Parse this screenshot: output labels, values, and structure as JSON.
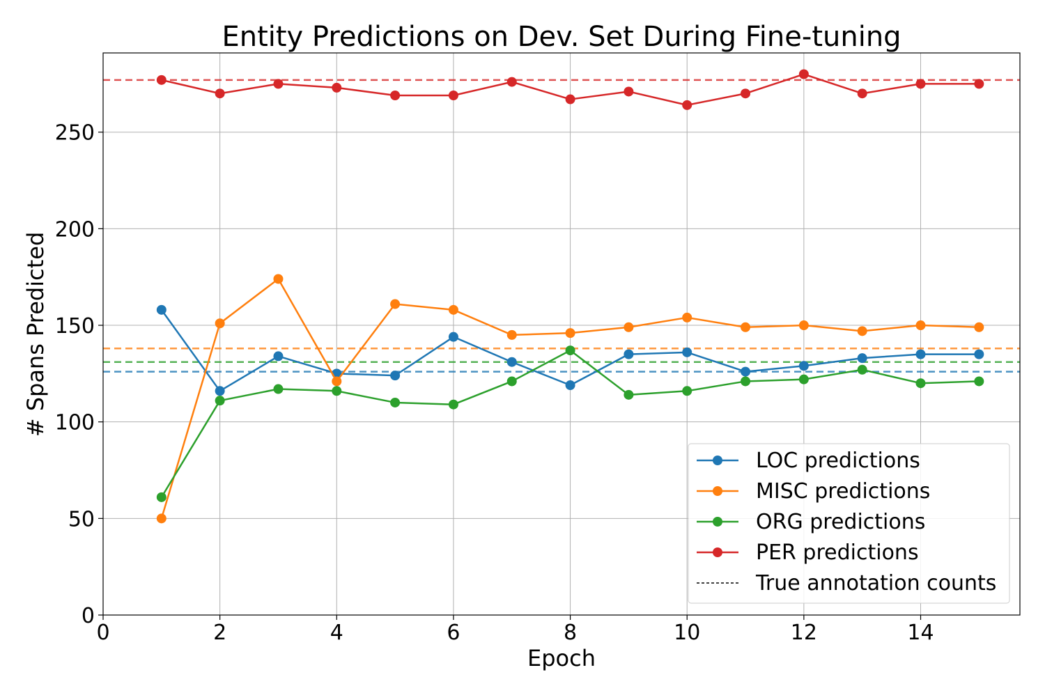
{
  "chart_data": {
    "type": "line",
    "title": "Entity Predictions on Dev. Set During Fine-tuning",
    "xlabel": "Epoch",
    "ylabel": "# Spans Predicted",
    "xlim": [
      0,
      15.7
    ],
    "ylim": [
      0,
      291
    ],
    "xticks": [
      0,
      2,
      4,
      6,
      8,
      10,
      12,
      14
    ],
    "yticks": [
      0,
      50,
      100,
      150,
      200,
      250
    ],
    "grid": true,
    "legend_position": "lower-right",
    "x": [
      1,
      2,
      3,
      4,
      5,
      6,
      7,
      8,
      9,
      10,
      11,
      12,
      13,
      14,
      15
    ],
    "series": [
      {
        "name": "LOC predictions",
        "color": "#1f77b4",
        "true_count": 126,
        "values": [
          158,
          116,
          134,
          125,
          124,
          144,
          131,
          119,
          135,
          136,
          126,
          129,
          133,
          135,
          135
        ]
      },
      {
        "name": "MISC predictions",
        "color": "#ff7f0e",
        "true_count": 138,
        "values": [
          50,
          151,
          174,
          121,
          161,
          158,
          145,
          146,
          149,
          154,
          149,
          150,
          147,
          150,
          149
        ]
      },
      {
        "name": "ORG predictions",
        "color": "#2ca02c",
        "true_count": 131,
        "values": [
          61,
          111,
          117,
          116,
          110,
          109,
          121,
          137,
          114,
          116,
          121,
          122,
          127,
          120,
          121
        ]
      },
      {
        "name": "PER predictions",
        "color": "#d62728",
        "true_count": 277,
        "values": [
          277,
          270,
          275,
          273,
          269,
          269,
          276,
          267,
          271,
          264,
          270,
          280,
          270,
          275,
          275
        ]
      }
    ],
    "reference_legend_label": "True annotation counts"
  }
}
